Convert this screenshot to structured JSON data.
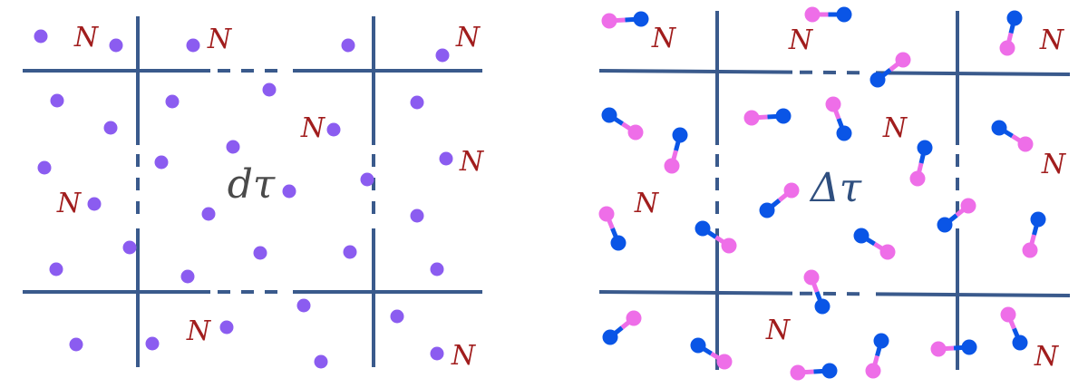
{
  "left_panel": {
    "volume_label": "dτ",
    "particle_count_label": "N",
    "particle_type": "atom"
  },
  "right_panel": {
    "volume_label": "Δτ",
    "particle_count_label": "N",
    "particle_type": "diatomic-molecule"
  },
  "colors": {
    "grid_line": "#3a5a8c",
    "atom": "#8b5cf0",
    "count_label": "#a11d1d",
    "molecule_pink": "#ee6ee8",
    "molecule_blue": "#0a55e6",
    "left_volume_label": "#4a4a4a",
    "right_volume_label": "#2f4f7f"
  }
}
